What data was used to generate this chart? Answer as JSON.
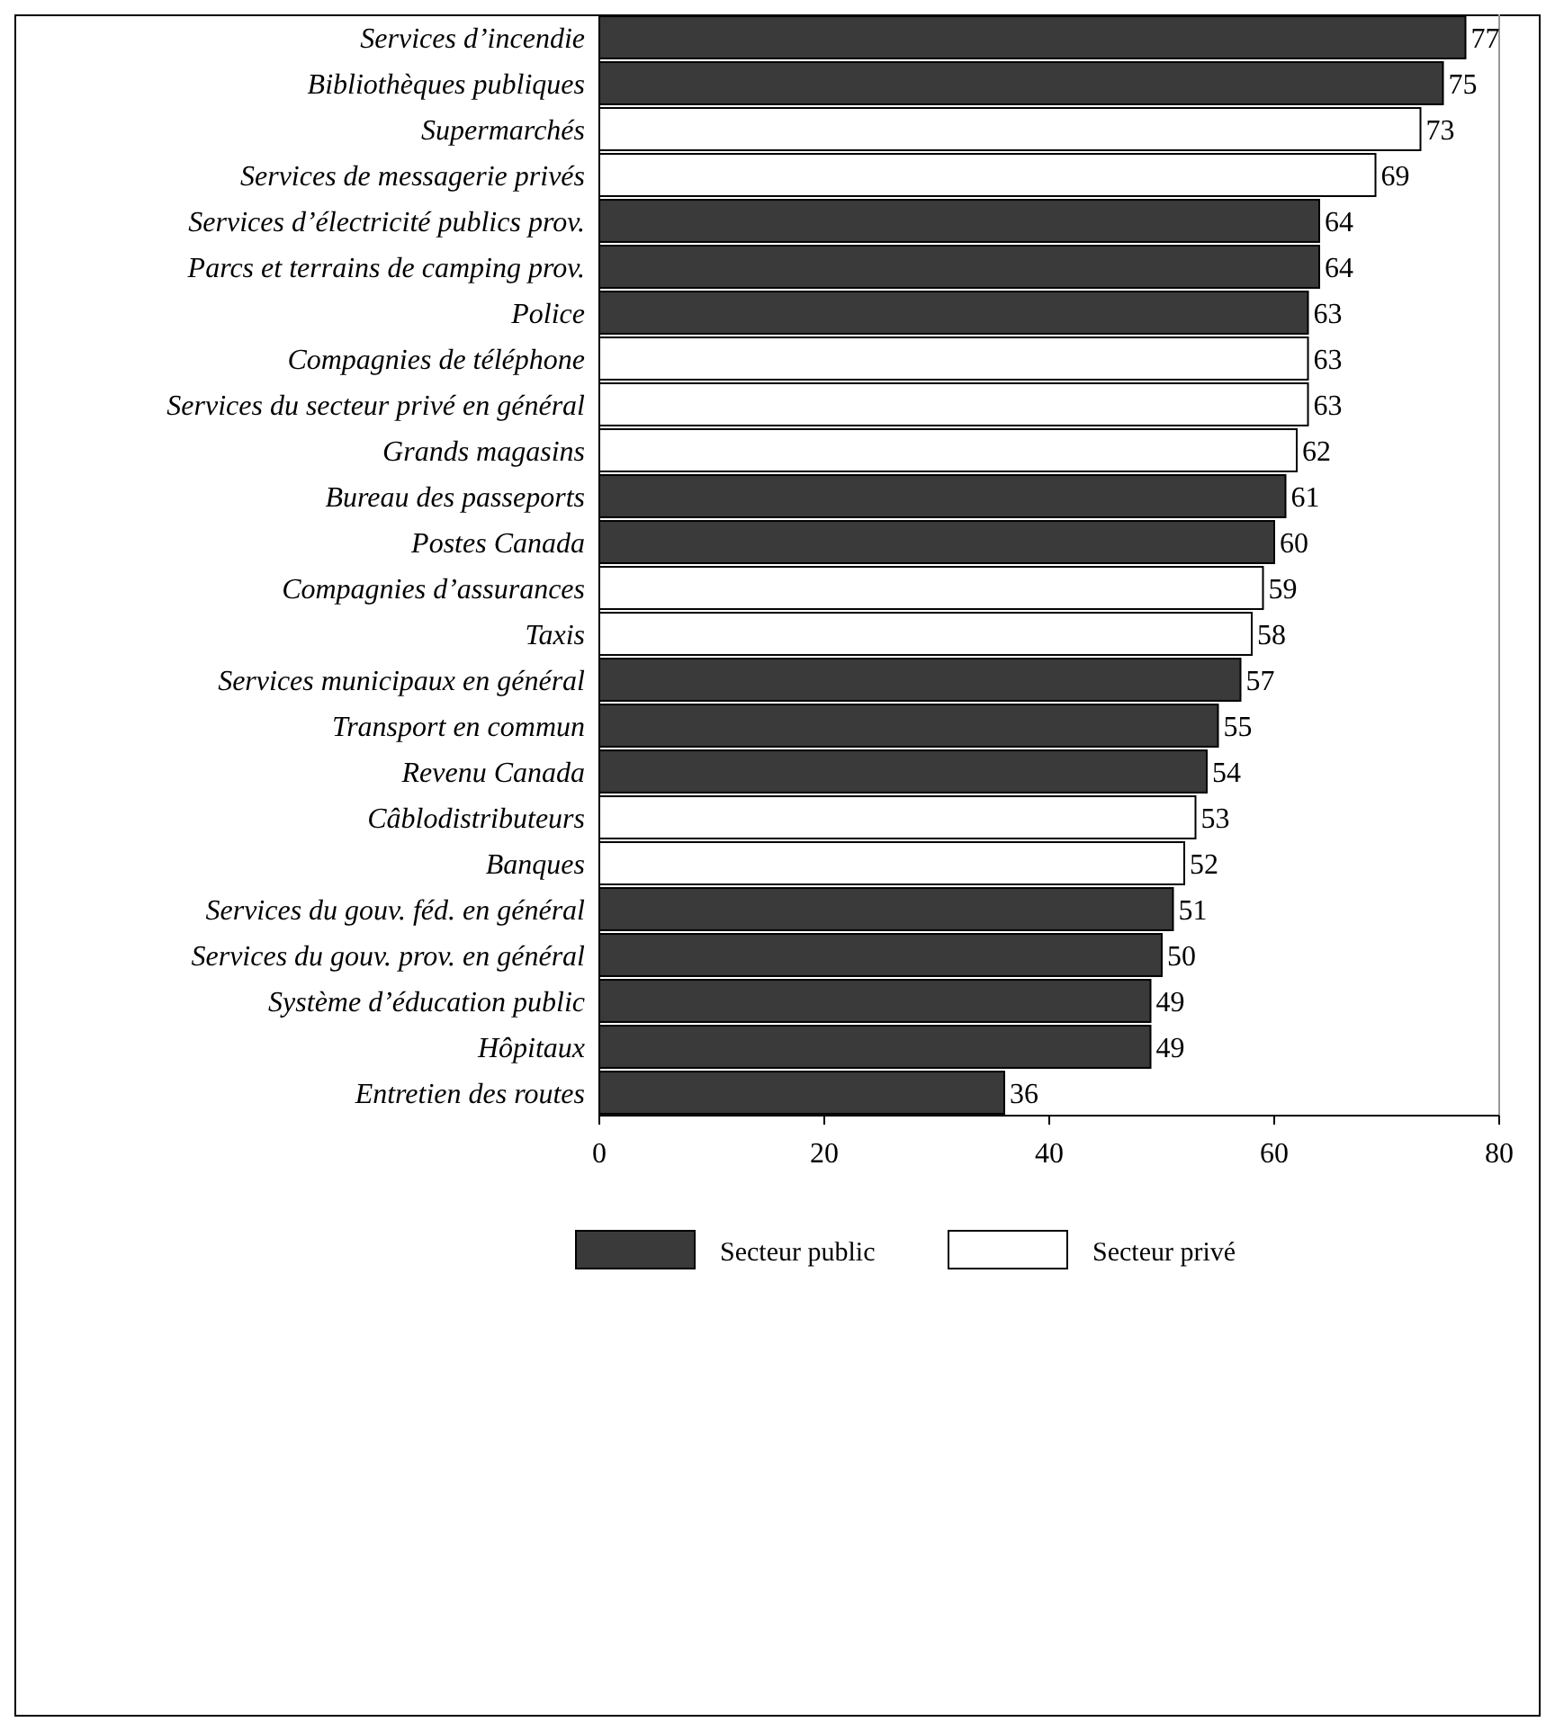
{
  "chart_data": {
    "type": "bar",
    "orientation": "horizontal",
    "stacked": true,
    "categories": [
      "Services d’incendie",
      "Bibliothèques publiques",
      "Supermarchés",
      "Services de messagerie privés",
      "Services d’électricité publics prov.",
      "Parcs et terrains de camping prov.",
      "Police",
      "Compagnies de téléphone",
      "Services du secteur privé en général",
      "Grands magasins",
      "Bureau des passeports",
      "Postes Canada",
      "Compagnies d’assurances",
      "Taxis",
      "Services municipaux en général",
      "Transport en commun",
      "Revenu Canada",
      "Câblodistributeurs",
      "Banques",
      "Services du gouv. féd. en général",
      "Services du gouv. prov. en général",
      "Système d’éducation public",
      "Hôpitaux",
      "Entretien des routes"
    ],
    "series": [
      {
        "name": "Secteur public",
        "color": "#3a3a3a",
        "values": [
          77,
          75,
          null,
          null,
          64,
          64,
          63,
          null,
          null,
          null,
          61,
          60,
          null,
          null,
          57,
          55,
          54,
          null,
          null,
          51,
          50,
          49,
          49,
          36
        ]
      },
      {
        "name": "Secteur privé",
        "color": "#ffffff",
        "values": [
          null,
          null,
          73,
          69,
          null,
          null,
          null,
          63,
          63,
          62,
          null,
          null,
          59,
          58,
          null,
          null,
          null,
          53,
          52,
          null,
          null,
          null,
          null,
          null
        ]
      }
    ],
    "xlim": [
      0,
      80
    ],
    "xticks": [
      0,
      20,
      40,
      60,
      80
    ],
    "data_labels": true,
    "legend": "bottom",
    "grid": false
  }
}
